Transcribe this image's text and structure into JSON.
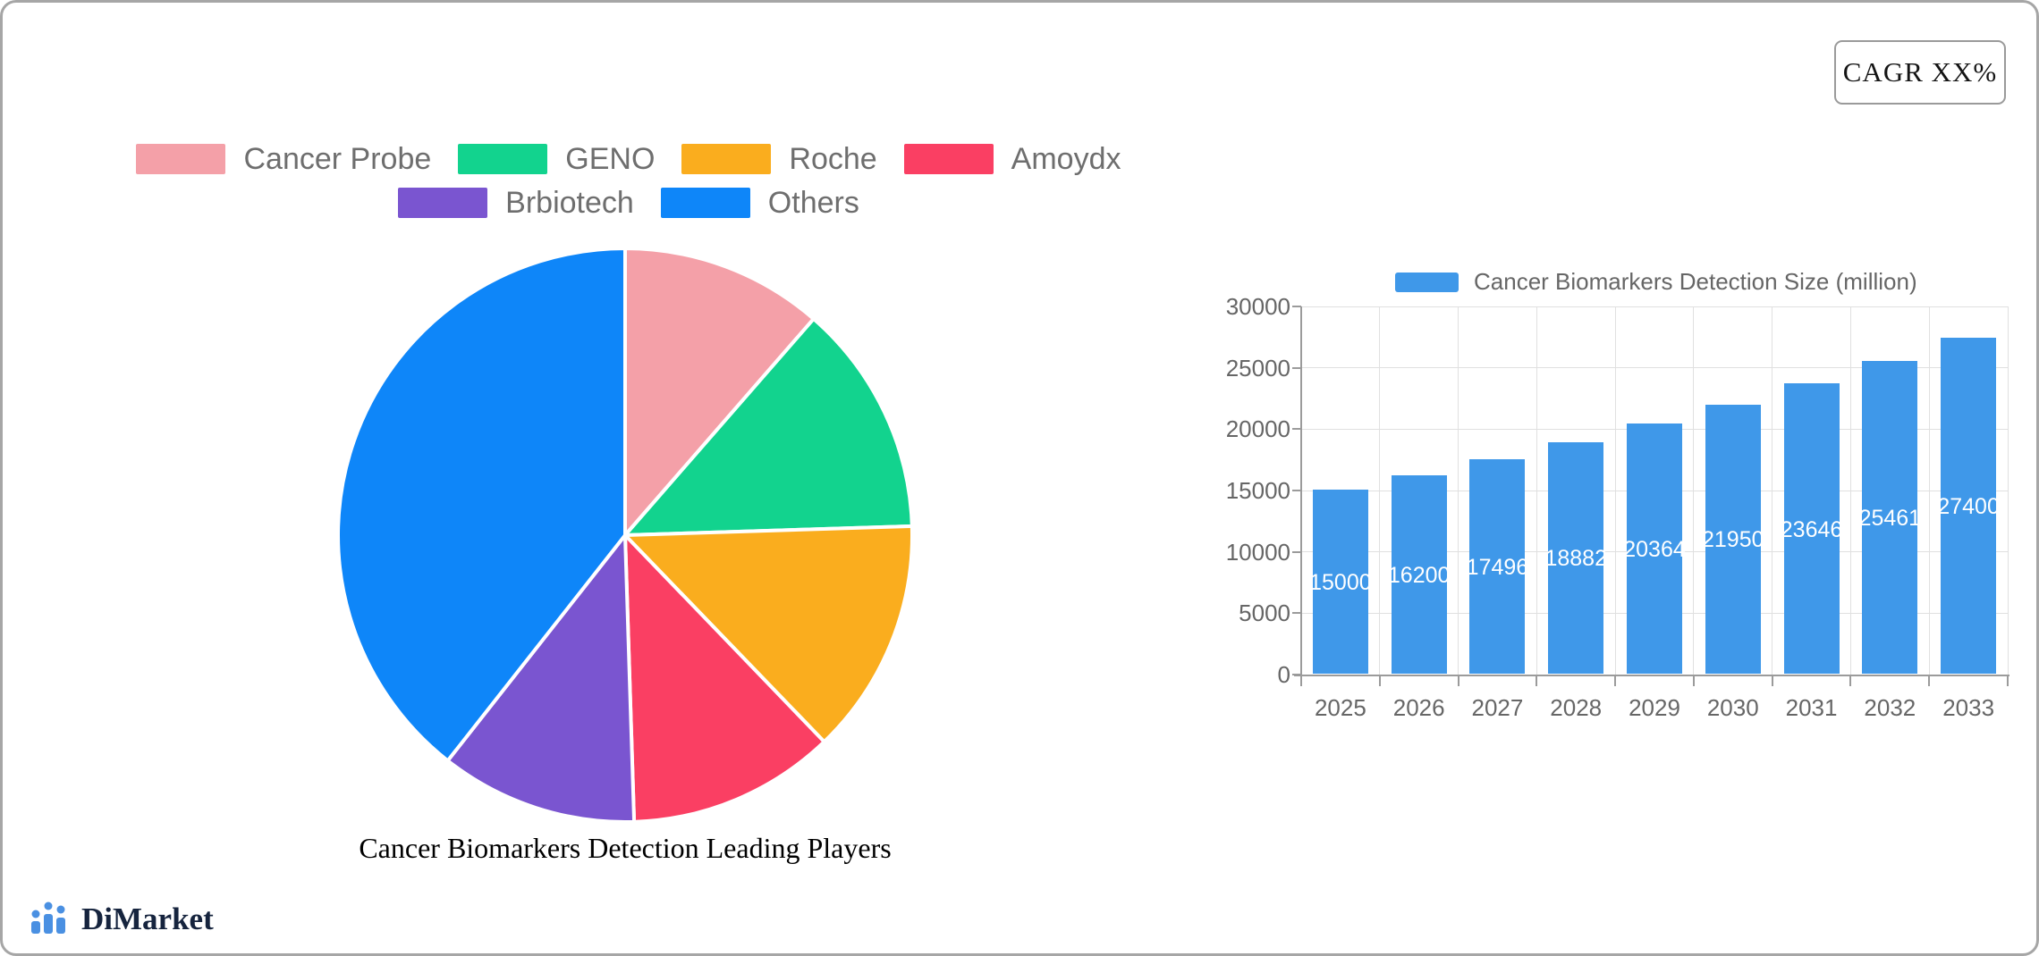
{
  "cagr_badge": {
    "label": "CAGR XX%"
  },
  "logo": {
    "text": "DiMarket",
    "icon": "bar-chart-icon",
    "icon_color": "#4A90E2",
    "text_color": "#16243E"
  },
  "colors": {
    "canvas_border": "#A6A6A6",
    "grid_line": "#E0E0E0",
    "axis_line": "#9B9B9B",
    "axis_text": "#666666",
    "legend_text": "#6E6E6E",
    "bar_fill": "#3F98E9",
    "bar_value_text": "#FFFFFF"
  },
  "chart_data": [
    {
      "type": "pie",
      "title": "Cancer Biomarkers Detection Leading Players",
      "legend_position": "top",
      "start_angle": "12 o'clock, clockwise",
      "slices": [
        {
          "label": "Cancer Probe",
          "percent": 11.4,
          "color": "#F4A0A8"
        },
        {
          "label": "GENO",
          "percent": 13.1,
          "color": "#12D38E"
        },
        {
          "label": "Roche",
          "percent": 13.3,
          "color": "#FAAD1E"
        },
        {
          "label": "Amoydx",
          "percent": 11.7,
          "color": "#FA3F63"
        },
        {
          "label": "Brbiotech",
          "percent": 11.1,
          "color": "#7A55D0"
        },
        {
          "label": "Others",
          "percent": 39.4,
          "color": "#0E86F9"
        }
      ],
      "note": "percent values estimated from measured slice angles; chart shows no numeric labels"
    },
    {
      "type": "bar",
      "legend": "Cancer Biomarkers Detection Size (million)",
      "categories": [
        "2025",
        "2026",
        "2027",
        "2028",
        "2029",
        "2030",
        "2031",
        "2032",
        "2033"
      ],
      "values": [
        15000,
        16200,
        17496,
        18882,
        20364,
        21950,
        23646,
        25461,
        27400
      ],
      "ylim": [
        0,
        30000
      ],
      "yticks": [
        0,
        5000,
        10000,
        15000,
        20000,
        25000,
        30000
      ],
      "grid": true,
      "value_label_position": "inside-middle"
    }
  ]
}
